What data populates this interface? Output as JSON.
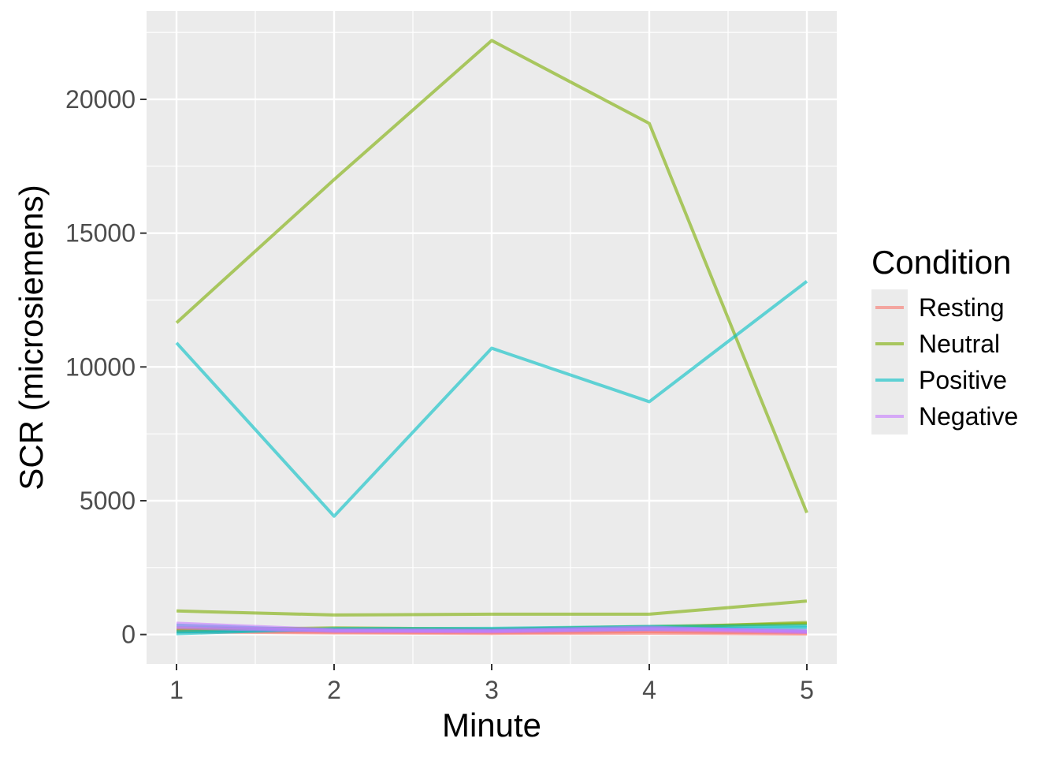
{
  "chart_data": {
    "type": "line",
    "title": "",
    "xlabel": "Minute",
    "ylabel": "SCR (microsiemens)",
    "x": [
      1,
      2,
      3,
      4,
      5
    ],
    "xlim": [
      0.81,
      5.19
    ],
    "ylim": [
      -1100,
      23300
    ],
    "xticks": [
      "1",
      "2",
      "3",
      "4",
      "5"
    ],
    "yticks": [
      "0",
      "5000",
      "10000",
      "15000",
      "20000"
    ],
    "ytick_values": [
      0,
      5000,
      10000,
      15000,
      20000
    ],
    "grid": true,
    "legend": {
      "title": "Condition",
      "placement": "right",
      "entries": [
        {
          "label": "Resting",
          "color": "#F8766D"
        },
        {
          "label": "Neutral",
          "color": "#7CAE00"
        },
        {
          "label": "Positive",
          "color": "#00BFC4"
        },
        {
          "label": "Negative",
          "color": "#C77CFF"
        }
      ]
    },
    "series": [
      {
        "condition": "Resting",
        "color": "#F8766D",
        "values": [
          100,
          60,
          40,
          50,
          20
        ]
      },
      {
        "condition": "Resting",
        "color": "#F8766D",
        "values": [
          200,
          120,
          100,
          150,
          90
        ]
      },
      {
        "condition": "Resting",
        "color": "#F8766D",
        "values": [
          150,
          90,
          70,
          100,
          60
        ]
      },
      {
        "condition": "Neutral",
        "color": "#7CAE00",
        "values": [
          11650,
          17000,
          22200,
          19100,
          4550
        ]
      },
      {
        "condition": "Neutral",
        "color": "#7CAE00",
        "values": [
          880,
          730,
          760,
          760,
          1250
        ]
      },
      {
        "condition": "Neutral",
        "color": "#7CAE00",
        "values": [
          250,
          200,
          180,
          250,
          450
        ]
      },
      {
        "condition": "Neutral",
        "color": "#7CAE00",
        "values": [
          150,
          250,
          200,
          300,
          400
        ]
      },
      {
        "condition": "Positive",
        "color": "#00BFC4",
        "values": [
          10900,
          4420,
          10700,
          8700,
          13200
        ]
      },
      {
        "condition": "Positive",
        "color": "#00BFC4",
        "values": [
          30,
          220,
          230,
          300,
          330
        ]
      },
      {
        "condition": "Positive",
        "color": "#00BFC4",
        "values": [
          350,
          150,
          180,
          280,
          120
        ]
      },
      {
        "condition": "Positive",
        "color": "#00BFC4",
        "values": [
          100,
          180,
          150,
          200,
          250
        ]
      },
      {
        "condition": "Negative",
        "color": "#C77CFF",
        "values": [
          420,
          180,
          160,
          270,
          110
        ]
      },
      {
        "condition": "Negative",
        "color": "#C77CFF",
        "values": [
          300,
          150,
          130,
          220,
          150
        ]
      },
      {
        "condition": "Negative",
        "color": "#C77CFF",
        "values": [
          250,
          120,
          100,
          180,
          80
        ]
      }
    ]
  }
}
